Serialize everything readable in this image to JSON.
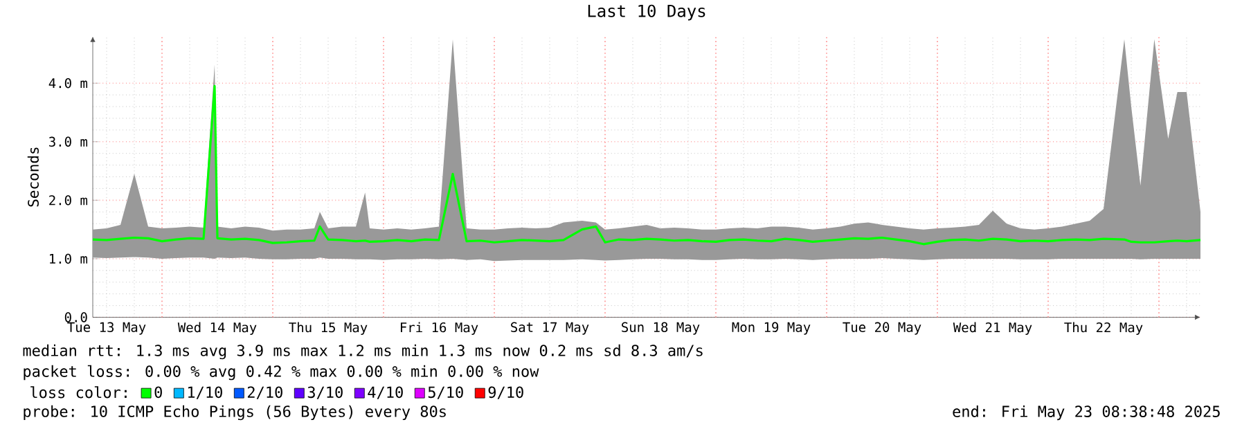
{
  "chart_data": {
    "type": "line",
    "title": "Last 10 Days",
    "ylabel": "Seconds",
    "legend_title": "loss color:",
    "legend": "bottom",
    "grid": true,
    "xlim": [
      "2025-05-13T09:00",
      "2025-05-23T09:00"
    ],
    "xticks": [
      {
        "value": "2025-05-13T12:00",
        "label": "Tue 13 May"
      },
      {
        "value": "2025-05-14T12:00",
        "label": "Wed 14 May"
      },
      {
        "value": "2025-05-15T12:00",
        "label": "Thu 15 May"
      },
      {
        "value": "2025-05-16T12:00",
        "label": "Fri 16 May"
      },
      {
        "value": "2025-05-17T12:00",
        "label": "Sat 17 May"
      },
      {
        "value": "2025-05-18T12:00",
        "label": "Sun 18 May"
      },
      {
        "value": "2025-05-19T12:00",
        "label": "Mon 19 May"
      },
      {
        "value": "2025-05-20T12:00",
        "label": "Tue 20 May"
      },
      {
        "value": "2025-05-21T12:00",
        "label": "Wed 21 May"
      },
      {
        "value": "2025-05-22T12:00",
        "label": "Thu 22 May"
      }
    ],
    "ylim": [
      0,
      4.8
    ],
    "yticks": [
      {
        "value": 0,
        "label": "0.0"
      },
      {
        "value": 1,
        "label": "1.0 m"
      },
      {
        "value": 2,
        "label": "2.0 m"
      },
      {
        "value": 3,
        "label": "3.0 m"
      },
      {
        "value": 4,
        "label": "4.0 m"
      }
    ],
    "x": [
      "2025-05-13T09:00",
      "2025-05-13T12:00",
      "2025-05-13T15:00",
      "2025-05-13T18:00",
      "2025-05-13T21:00",
      "2025-05-14T00:00",
      "2025-05-14T03:00",
      "2025-05-14T06:00",
      "2025-05-14T09:00",
      "2025-05-14T11:24",
      "2025-05-14T12:00",
      "2025-05-14T15:00",
      "2025-05-14T18:00",
      "2025-05-14T21:00",
      "2025-05-15T00:00",
      "2025-05-15T03:00",
      "2025-05-15T06:00",
      "2025-05-15T09:00",
      "2025-05-15T10:12",
      "2025-05-15T12:00",
      "2025-05-15T15:00",
      "2025-05-15T18:00",
      "2025-05-15T20:00",
      "2025-05-15T21:00",
      "2025-05-16T00:00",
      "2025-05-16T03:00",
      "2025-05-16T06:00",
      "2025-05-16T09:00",
      "2025-05-16T12:00",
      "2025-05-16T15:00",
      "2025-05-16T18:00",
      "2025-05-16T21:00",
      "2025-05-17T00:00",
      "2025-05-17T03:00",
      "2025-05-17T06:00",
      "2025-05-17T09:00",
      "2025-05-17T12:00",
      "2025-05-17T15:00",
      "2025-05-17T19:00",
      "2025-05-17T22:00",
      "2025-05-18T00:00",
      "2025-05-18T03:00",
      "2025-05-18T06:00",
      "2025-05-18T09:00",
      "2025-05-18T12:00",
      "2025-05-18T15:00",
      "2025-05-18T18:00",
      "2025-05-18T21:00",
      "2025-05-19T00:00",
      "2025-05-19T03:00",
      "2025-05-19T06:00",
      "2025-05-19T09:00",
      "2025-05-19T12:00",
      "2025-05-19T15:00",
      "2025-05-19T18:00",
      "2025-05-19T21:00",
      "2025-05-20T00:00",
      "2025-05-20T03:00",
      "2025-05-20T06:00",
      "2025-05-20T09:00",
      "2025-05-20T12:00",
      "2025-05-20T15:00",
      "2025-05-20T18:00",
      "2025-05-20T21:00",
      "2025-05-21T00:00",
      "2025-05-21T03:00",
      "2025-05-21T06:00",
      "2025-05-21T09:00",
      "2025-05-21T12:00",
      "2025-05-21T15:00",
      "2025-05-21T18:00",
      "2025-05-21T21:00",
      "2025-05-22T00:00",
      "2025-05-22T03:00",
      "2025-05-22T06:00",
      "2025-05-22T09:00",
      "2025-05-22T12:00",
      "2025-05-22T16:30",
      "2025-05-22T18:00",
      "2025-05-22T20:00",
      "2025-05-22T23:00",
      "2025-05-23T02:00",
      "2025-05-23T04:00",
      "2025-05-23T06:00",
      "2025-05-23T09:00"
    ],
    "series": [
      {
        "name": "0",
        "color": "#00ff00",
        "values": [
          1.33,
          1.32,
          1.34,
          1.36,
          1.35,
          1.3,
          1.33,
          1.35,
          1.34,
          3.95,
          1.35,
          1.33,
          1.34,
          1.32,
          1.27,
          1.28,
          1.3,
          1.31,
          1.55,
          1.33,
          1.32,
          1.3,
          1.31,
          1.29,
          1.3,
          1.32,
          1.3,
          1.33,
          1.32,
          2.45,
          1.3,
          1.31,
          1.28,
          1.3,
          1.32,
          1.31,
          1.3,
          1.32,
          1.5,
          1.55,
          1.28,
          1.33,
          1.32,
          1.34,
          1.33,
          1.31,
          1.32,
          1.3,
          1.29,
          1.32,
          1.33,
          1.31,
          1.3,
          1.34,
          1.32,
          1.29,
          1.31,
          1.33,
          1.35,
          1.34,
          1.36,
          1.33,
          1.3,
          1.25,
          1.29,
          1.32,
          1.33,
          1.31,
          1.34,
          1.33,
          1.3,
          1.31,
          1.3,
          1.32,
          1.33,
          1.32,
          1.34,
          1.33,
          1.29,
          1.28,
          1.28,
          1.3,
          1.31,
          1.3,
          1.32
        ],
        "lower": [
          1.02,
          1.01,
          1.02,
          1.03,
          1.02,
          1.0,
          1.01,
          1.02,
          1.02,
          1.0,
          1.02,
          1.01,
          1.02,
          1.0,
          0.99,
          0.99,
          1.0,
          1.0,
          1.02,
          1.0,
          1.0,
          0.99,
          0.99,
          0.99,
          0.98,
          0.99,
          0.99,
          1.0,
          0.99,
          1.0,
          0.98,
          0.99,
          0.96,
          0.97,
          0.98,
          0.98,
          0.98,
          0.98,
          0.99,
          0.98,
          0.97,
          0.98,
          0.99,
          1.0,
          1.0,
          0.99,
          0.99,
          0.98,
          0.98,
          0.99,
          1.0,
          0.99,
          0.99,
          1.0,
          0.99,
          0.98,
          0.99,
          1.0,
          1.0,
          1.0,
          1.01,
          1.0,
          0.99,
          0.98,
          0.99,
          1.0,
          1.0,
          1.0,
          1.0,
          1.0,
          0.99,
          0.99,
          0.99,
          1.0,
          1.0,
          1.0,
          1.0,
          1.0,
          1.0,
          0.99,
          1.0,
          1.0,
          1.0,
          1.0,
          1.0
        ],
        "upper": [
          1.5,
          1.52,
          1.58,
          2.45,
          1.55,
          1.52,
          1.53,
          1.55,
          1.53,
          4.32,
          1.55,
          1.52,
          1.55,
          1.53,
          1.48,
          1.5,
          1.5,
          1.52,
          1.8,
          1.52,
          1.55,
          1.55,
          2.13,
          1.52,
          1.5,
          1.52,
          1.5,
          1.52,
          1.55,
          4.75,
          1.52,
          1.5,
          1.5,
          1.52,
          1.53,
          1.52,
          1.53,
          1.62,
          1.65,
          1.62,
          1.5,
          1.52,
          1.55,
          1.58,
          1.52,
          1.53,
          1.52,
          1.5,
          1.5,
          1.52,
          1.53,
          1.52,
          1.55,
          1.55,
          1.53,
          1.5,
          1.52,
          1.55,
          1.6,
          1.62,
          1.58,
          1.55,
          1.52,
          1.5,
          1.52,
          1.53,
          1.55,
          1.58,
          1.82,
          1.6,
          1.52,
          1.5,
          1.52,
          1.55,
          1.6,
          1.65,
          1.85,
          4.75,
          3.6,
          2.25,
          4.75,
          3.05,
          3.85,
          3.85,
          1.8
        ]
      },
      {
        "name": "1/10",
        "color": "#00b8ff",
        "values": [
          null,
          null,
          null,
          null,
          null,
          null,
          null,
          null,
          null,
          null,
          null,
          null,
          null,
          null,
          null,
          null,
          null,
          null,
          null,
          null,
          null,
          null,
          null,
          null,
          null,
          null,
          null,
          null,
          null,
          null,
          null,
          null,
          null,
          null,
          null,
          null,
          null,
          null,
          null,
          null,
          null,
          null,
          null,
          null,
          null,
          null,
          null,
          null,
          null,
          null,
          null,
          null,
          null,
          null,
          null,
          null,
          null,
          null,
          null,
          null,
          null,
          null,
          null,
          null,
          null,
          null,
          null,
          null,
          null,
          null,
          null,
          null,
          null,
          null,
          null,
          null,
          null,
          null,
          null,
          null,
          null,
          null,
          null,
          null,
          null
        ]
      },
      {
        "name": "2/10",
        "color": "#0059ff",
        "values": [
          null,
          null,
          null,
          null,
          null,
          null,
          null,
          null,
          null,
          null,
          null,
          null,
          null,
          null,
          null,
          null,
          null,
          null,
          null,
          null,
          null,
          null,
          null,
          null,
          null,
          null,
          null,
          null,
          null,
          null,
          null,
          null,
          null,
          null,
          null,
          null,
          null,
          null,
          null,
          null,
          null,
          null,
          null,
          null,
          null,
          null,
          null,
          null,
          null,
          null,
          null,
          null,
          null,
          null,
          null,
          null,
          null,
          null,
          null,
          null,
          null,
          null,
          null,
          null,
          null,
          null,
          null,
          null,
          null,
          null,
          null,
          null,
          null,
          null,
          null,
          null,
          null,
          null,
          null,
          null,
          null,
          null,
          null,
          null,
          null
        ]
      },
      {
        "name": "3/10",
        "color": "#5e00ff",
        "values": [
          null,
          null,
          null,
          null,
          null,
          null,
          null,
          null,
          null,
          null,
          null,
          null,
          null,
          null,
          null,
          null,
          null,
          null,
          null,
          null,
          null,
          null,
          null,
          null,
          null,
          null,
          null,
          null,
          null,
          null,
          null,
          null,
          null,
          null,
          null,
          null,
          null,
          null,
          null,
          null,
          null,
          null,
          null,
          null,
          null,
          null,
          null,
          null,
          null,
          null,
          null,
          null,
          null,
          null,
          null,
          null,
          null,
          null,
          null,
          null,
          null,
          null,
          null,
          null,
          null,
          null,
          null,
          null,
          null,
          null,
          null,
          null,
          null,
          null,
          null,
          null,
          null,
          null,
          null,
          null,
          null,
          null,
          null,
          null,
          null
        ]
      },
      {
        "name": "4/10",
        "color": "#7e00ff",
        "values": [
          null,
          null,
          null,
          null,
          null,
          null,
          null,
          null,
          null,
          null,
          null,
          null,
          null,
          null,
          null,
          null,
          null,
          null,
          null,
          null,
          null,
          null,
          null,
          null,
          null,
          null,
          null,
          null,
          null,
          null,
          null,
          null,
          null,
          null,
          null,
          null,
          null,
          null,
          null,
          null,
          null,
          null,
          null,
          null,
          null,
          null,
          null,
          null,
          null,
          null,
          null,
          null,
          null,
          null,
          null,
          null,
          null,
          null,
          null,
          null,
          null,
          null,
          null,
          null,
          null,
          null,
          null,
          null,
          null,
          null,
          null,
          null,
          null,
          null,
          null,
          null,
          null,
          null,
          null,
          null,
          null,
          null,
          null,
          null,
          null
        ]
      },
      {
        "name": "5/10",
        "color": "#dd00ff",
        "values": [
          null,
          null,
          null,
          null,
          null,
          null,
          null,
          null,
          null,
          null,
          null,
          null,
          null,
          null,
          null,
          null,
          null,
          null,
          null,
          null,
          null,
          null,
          null,
          null,
          null,
          null,
          null,
          null,
          null,
          null,
          null,
          null,
          null,
          null,
          null,
          null,
          null,
          null,
          null,
          null,
          null,
          null,
          null,
          null,
          null,
          null,
          null,
          null,
          null,
          null,
          null,
          null,
          null,
          null,
          null,
          null,
          null,
          null,
          null,
          null,
          null,
          null,
          null,
          null,
          null,
          null,
          null,
          null,
          null,
          null,
          null,
          null,
          null,
          null,
          null,
          null,
          null,
          null,
          null,
          null,
          null,
          null,
          null,
          null,
          null
        ]
      },
      {
        "name": "9/10",
        "color": "#ff0000",
        "values": [
          null,
          null,
          null,
          null,
          null,
          null,
          null,
          null,
          null,
          null,
          null,
          null,
          null,
          null,
          null,
          null,
          null,
          null,
          null,
          null,
          null,
          null,
          null,
          null,
          null,
          null,
          null,
          null,
          null,
          null,
          null,
          null,
          null,
          null,
          null,
          null,
          null,
          null,
          null,
          null,
          null,
          null,
          null,
          null,
          null,
          null,
          null,
          null,
          null,
          null,
          null,
          null,
          null,
          null,
          null,
          null,
          null,
          null,
          null,
          null,
          null,
          null,
          null,
          null,
          null,
          null,
          null,
          null,
          null,
          null,
          null,
          null,
          null,
          null,
          null,
          null,
          null,
          null,
          null,
          null,
          null,
          null,
          null,
          null,
          null
        ]
      }
    ],
    "annotations": [
      "median rtt: 1.3 ms avg 3.9 ms max 1.2 ms min 1.3 ms now 0.2 ms sd 8.3 am/s",
      "packet loss: 0.00 % avg 0.42 % max 0.00 % min 0.00 % now",
      "probe: 10 ICMP Echo Pings (56 Bytes) every 80s",
      "end: Fri May 23 08:38:48 2025"
    ]
  }
}
